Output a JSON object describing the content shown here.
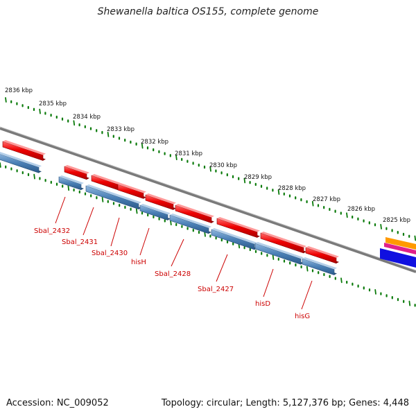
{
  "title": "Shewanella baltica OS155, complete genome",
  "footer": {
    "accession": "Accession: NC_009052",
    "summary": "Topology: circular; Length: 5,127,376 bp; Genes: 4,448"
  },
  "colors": {
    "forward_cds": "#e8000a",
    "reverse_cds": "#4a7fb5",
    "backbone": "#7a7a7a",
    "tick": "#0a7a0a",
    "gene_label": "#cc0000",
    "right_tracks": [
      "#ff9900",
      "#e0208a",
      "#1010e0"
    ]
  },
  "scale_labels": [
    "2836 kbp",
    "2835 kbp",
    "2834 kbp",
    "2833 kbp",
    "2832 kbp",
    "2831 kbp",
    "2830 kbp",
    "2829 kbp",
    "2828 kbp",
    "2827 kbp",
    "2826 kbp",
    "2825 kbp"
  ],
  "gene_labels": [
    "Sbal_2432",
    "Sbal_2431",
    "Sbal_2430",
    "hisH",
    "Sbal_2428",
    "Sbal_2427",
    "hisD",
    "hisG"
  ]
}
